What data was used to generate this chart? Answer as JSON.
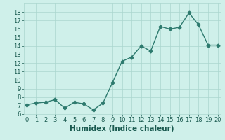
{
  "x": [
    0,
    1,
    2,
    3,
    4,
    5,
    6,
    7,
    8,
    9,
    10,
    11,
    12,
    13,
    14,
    15,
    16,
    17,
    18,
    19,
    20
  ],
  "y": [
    7.1,
    7.3,
    7.4,
    7.7,
    6.7,
    7.4,
    7.2,
    6.5,
    7.3,
    9.7,
    12.2,
    12.7,
    14.0,
    13.4,
    16.3,
    16.0,
    16.2,
    17.9,
    16.5,
    14.1,
    14.1
  ],
  "line_color": "#2d7a6e",
  "marker": "D",
  "marker_size": 2.5,
  "linewidth": 1.0,
  "bg_color": "#cff0ea",
  "grid_color": "#aad6ce",
  "xlabel": "Humidex (Indice chaleur)",
  "ylim": [
    6,
    19
  ],
  "xlim": [
    -0.3,
    20.3
  ],
  "yticks": [
    6,
    7,
    8,
    9,
    10,
    11,
    12,
    13,
    14,
    15,
    16,
    17,
    18
  ],
  "xticks": [
    0,
    1,
    2,
    3,
    4,
    5,
    6,
    7,
    8,
    9,
    10,
    11,
    12,
    13,
    14,
    15,
    16,
    17,
    18,
    19,
    20
  ],
  "tick_fontsize": 6,
  "xlabel_fontsize": 7.5,
  "tick_color": "#1a5a50",
  "xlabel_color": "#1a5a50"
}
